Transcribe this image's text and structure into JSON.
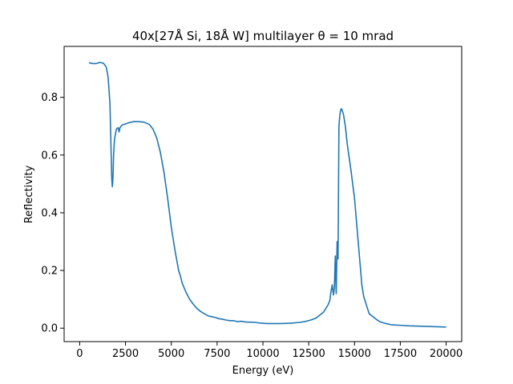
{
  "chart_data": {
    "type": "line",
    "title": "40x[27Å Si, 18Å W] multilayer θ = 10 mrad",
    "xlabel": "Energy (eV)",
    "ylabel": "Reflectivity",
    "xlim": [
      -850,
      20850
    ],
    "ylim": [
      -0.0465,
      0.9765
    ],
    "xticks": [
      0,
      2500,
      5000,
      7500,
      10000,
      12500,
      15000,
      17500,
      20000
    ],
    "yticks": [
      0.0,
      0.2,
      0.4,
      0.6,
      0.8
    ],
    "xtick_labels": [
      "0",
      "2500",
      "5000",
      "7500",
      "10000",
      "12500",
      "15000",
      "17500",
      "20000"
    ],
    "ytick_labels": [
      "0.0",
      "0.2",
      "0.4",
      "0.6",
      "0.8"
    ],
    "grid": false,
    "line_color": "#1f77b4",
    "series": [
      {
        "x": [
          500,
          700,
          900,
          1100,
          1300,
          1450,
          1550,
          1650,
          1700,
          1750,
          1780,
          1800,
          1820,
          1850,
          1900,
          2000,
          2100,
          2150,
          2200,
          2300,
          2400,
          2500,
          2600,
          2700,
          2800,
          3000,
          3200,
          3500,
          3800,
          4000,
          4200,
          4400,
          4600,
          4800,
          5000,
          5200,
          5400,
          5500,
          5600,
          5800,
          6000,
          6200,
          6400,
          6600,
          6800,
          7000,
          7200,
          7400,
          7600,
          7800,
          8000,
          8200,
          8400,
          8600,
          8800,
          9000,
          9200,
          9400,
          9600,
          9800,
          10000,
          10200,
          10500,
          11000,
          11500,
          12000,
          12300,
          12600,
          12900,
          13100,
          13300,
          13450,
          13550,
          13650,
          13700,
          13780,
          13850,
          13900,
          13950,
          14000,
          14050,
          14100,
          14150,
          14200,
          14250,
          14300,
          14400,
          14500,
          14600,
          14800,
          15000,
          15200,
          15400,
          15500,
          15600,
          15700,
          15800,
          16000,
          16200,
          16400,
          16600,
          16800,
          17000,
          17500,
          18000,
          18500,
          19000,
          19500,
          20000
        ],
        "values": [
          0.92,
          0.917,
          0.917,
          0.921,
          0.918,
          0.905,
          0.87,
          0.78,
          0.65,
          0.52,
          0.49,
          0.505,
          0.53,
          0.6,
          0.655,
          0.69,
          0.695,
          0.68,
          0.695,
          0.703,
          0.706,
          0.708,
          0.71,
          0.712,
          0.714,
          0.716,
          0.716,
          0.714,
          0.706,
          0.69,
          0.66,
          0.61,
          0.54,
          0.45,
          0.35,
          0.27,
          0.2,
          0.18,
          0.155,
          0.125,
          0.1,
          0.083,
          0.068,
          0.058,
          0.05,
          0.043,
          0.04,
          0.037,
          0.033,
          0.031,
          0.028,
          0.026,
          0.026,
          0.023,
          0.024,
          0.022,
          0.021,
          0.021,
          0.02,
          0.018,
          0.017,
          0.016,
          0.016,
          0.016,
          0.017,
          0.02,
          0.023,
          0.028,
          0.035,
          0.045,
          0.055,
          0.07,
          0.08,
          0.095,
          0.12,
          0.15,
          0.115,
          0.14,
          0.25,
          0.12,
          0.3,
          0.24,
          0.7,
          0.74,
          0.758,
          0.76,
          0.74,
          0.7,
          0.64,
          0.55,
          0.45,
          0.3,
          0.15,
          0.11,
          0.09,
          0.07,
          0.05,
          0.04,
          0.03,
          0.022,
          0.018,
          0.015,
          0.012,
          0.01,
          0.008,
          0.007,
          0.006,
          0.005,
          0.004
        ]
      }
    ]
  }
}
